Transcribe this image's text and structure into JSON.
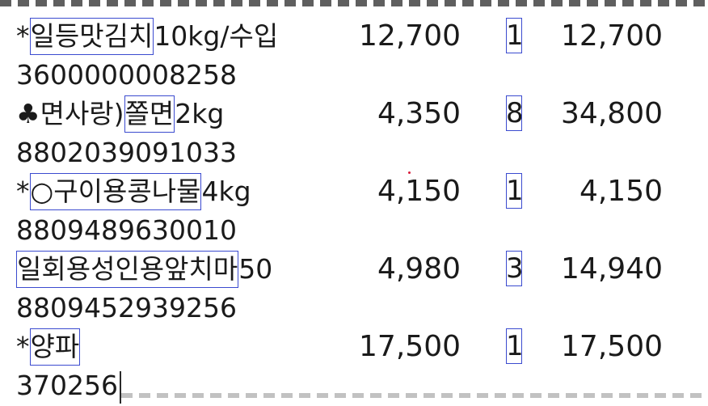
{
  "items": [
    {
      "prefix": "*",
      "name_boxed": "일등맛김치",
      "name_suffix": "10kg/수입",
      "barcode": "3600000008258",
      "price": "12,700",
      "qty": "1",
      "amount": "12,700"
    },
    {
      "prefix": "♣면사랑)",
      "name_boxed": "쫄면",
      "name_suffix": "2kg",
      "barcode": "8802039091033",
      "price": "4,350",
      "qty": "8",
      "amount": "34,800"
    },
    {
      "prefix": "*",
      "name_boxed": "○구이용콩나물",
      "name_suffix": "4kg",
      "barcode": "8809489630010",
      "price": "4,150",
      "qty": "1",
      "amount": "4,150"
    },
    {
      "prefix": "",
      "name_boxed": "일회용성인용앞치마",
      "name_suffix": "50",
      "barcode": "8809452939256",
      "price": "4,980",
      "qty": "3",
      "amount": "14,940"
    },
    {
      "prefix": "*",
      "name_boxed": "양파",
      "name_suffix": "",
      "barcode": "370256",
      "price": "17,500",
      "qty": "1",
      "amount": "17,500"
    }
  ]
}
